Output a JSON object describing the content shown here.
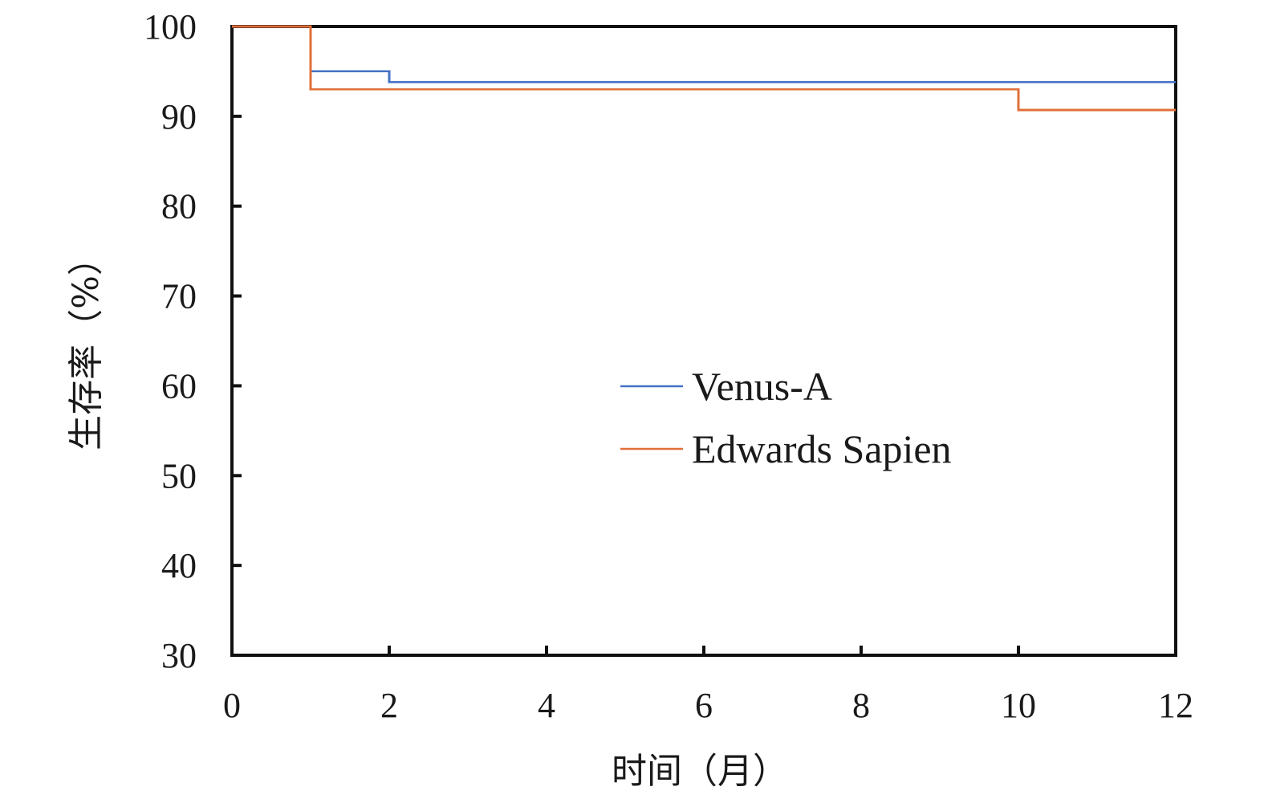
{
  "chart_data": {
    "type": "line",
    "step": true,
    "xlabel": "时间（月）",
    "ylabel": "生存率（%）",
    "xlim": [
      0,
      12
    ],
    "ylim": [
      30,
      100
    ],
    "xticks": [
      0,
      2,
      4,
      6,
      8,
      10,
      12
    ],
    "yticks": [
      30,
      40,
      50,
      60,
      70,
      80,
      90,
      100
    ],
    "grid": false,
    "legend_position": "center-right",
    "series": [
      {
        "name": "Venus-A",
        "color": "#4472c4",
        "x": [
          0,
          1,
          2,
          12
        ],
        "y": [
          100,
          95,
          93.8,
          93.8
        ]
      },
      {
        "name": "Edwards Sapien",
        "color": "#e0703a",
        "x": [
          0,
          1,
          10,
          12
        ],
        "y": [
          100,
          93,
          90.7,
          90.7
        ]
      }
    ]
  }
}
